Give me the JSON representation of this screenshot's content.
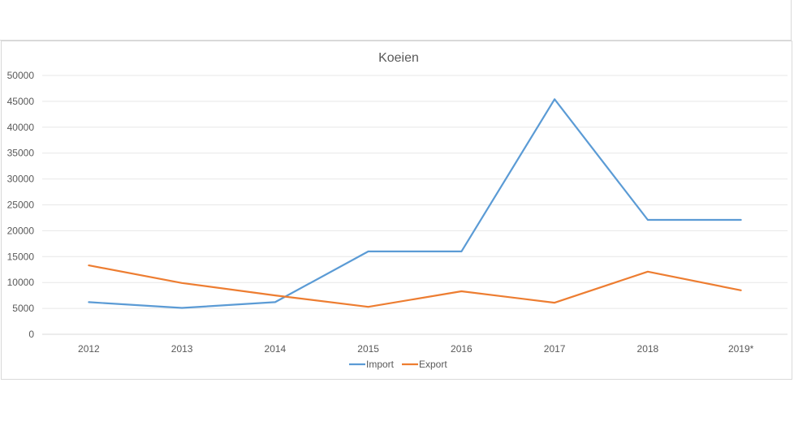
{
  "chart_data": {
    "type": "line",
    "title": "Koeien",
    "xlabel": "",
    "ylabel": "",
    "categories": [
      "2012",
      "2013",
      "2014",
      "2015",
      "2016",
      "2017",
      "2018",
      "2019*"
    ],
    "yticks": [
      "0",
      "5000",
      "10000",
      "15000",
      "20000",
      "25000",
      "30000",
      "35000",
      "40000",
      "45000",
      "50000"
    ],
    "ylim": [
      0,
      50000
    ],
    "grid": true,
    "legend_position": "bottom",
    "series": [
      {
        "name": "Import",
        "color": "#5b9bd5",
        "values": [
          6200,
          5100,
          6200,
          16000,
          16000,
          45400,
          22100,
          22100
        ]
      },
      {
        "name": "Export",
        "color": "#ed7d31",
        "values": [
          13300,
          9900,
          7500,
          5300,
          8300,
          6100,
          12100,
          8500
        ]
      }
    ]
  }
}
